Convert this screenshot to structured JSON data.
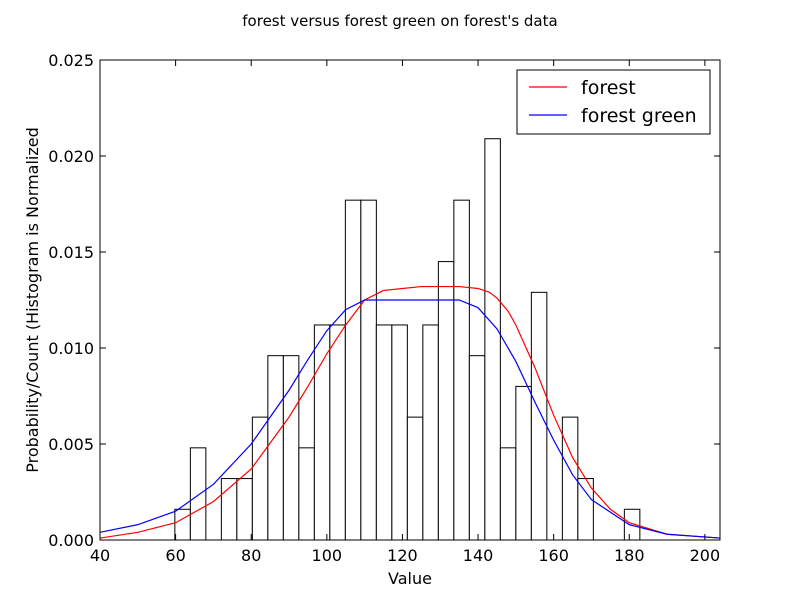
{
  "chart_data": {
    "type": "histogram+line",
    "title": "forest versus forest green on forest's data",
    "xlabel": "Value",
    "ylabel": "Probability/Count (Histogram is Normalized",
    "xlim": [
      40,
      204
    ],
    "ylim": [
      0,
      0.025
    ],
    "xticks": [
      40,
      60,
      80,
      100,
      120,
      140,
      160,
      180,
      200
    ],
    "yticks": [
      0.0,
      0.005,
      0.01,
      0.015,
      0.02,
      0.025
    ],
    "ytick_labels": [
      "0.000",
      "0.005",
      "0.010",
      "0.015",
      "0.020",
      "0.025"
    ],
    "grid": false,
    "legend_position": "top-right",
    "histogram": {
      "bin_start": 59.8,
      "bin_width": 4.1,
      "values": [
        0.0016,
        0.0048,
        0,
        0.0032,
        0.0032,
        0.0064,
        0.0096,
        0.0096,
        0.0048,
        0.0112,
        0.0112,
        0.0177,
        0.0177,
        0.0112,
        0.0112,
        0.0064,
        0.0112,
        0.0145,
        0.0177,
        0.0096,
        0.0209,
        0.0048,
        0.008,
        0.0129,
        0,
        0.0064,
        0.0032,
        0,
        0,
        0.0016
      ],
      "edge_color": "#000000",
      "fill_color": "#ffffff"
    },
    "series": [
      {
        "name": "forest",
        "color": "#ff0000",
        "x": [
          40,
          50,
          60,
          70,
          80,
          90,
          95,
          100,
          105,
          110,
          115,
          120,
          125,
          130,
          135,
          140,
          143,
          145,
          148,
          150,
          155,
          160,
          165,
          170,
          175,
          180,
          190,
          204
        ],
        "y": [
          0.0001,
          0.0004,
          0.0009,
          0.002,
          0.0037,
          0.0064,
          0.008,
          0.0097,
          0.0112,
          0.0125,
          0.013,
          0.0131,
          0.0132,
          0.0132,
          0.0132,
          0.0131,
          0.0129,
          0.0126,
          0.0119,
          0.0112,
          0.009,
          0.0065,
          0.0043,
          0.0027,
          0.0016,
          0.0009,
          0.0003,
          0.0001
        ]
      },
      {
        "name": "forest green",
        "color": "#0000ff",
        "x": [
          40,
          50,
          60,
          70,
          80,
          90,
          95,
          100,
          105,
          110,
          115,
          120,
          125,
          130,
          135,
          140,
          145,
          150,
          155,
          160,
          165,
          170,
          180,
          190,
          204
        ],
        "y": [
          0.0004,
          0.0008,
          0.0015,
          0.0029,
          0.005,
          0.0078,
          0.0094,
          0.0109,
          0.012,
          0.0125,
          0.0125,
          0.0125,
          0.0125,
          0.0125,
          0.0125,
          0.0121,
          0.011,
          0.0093,
          0.0072,
          0.0052,
          0.0034,
          0.0021,
          0.0008,
          0.0003,
          0.0001
        ]
      }
    ]
  }
}
